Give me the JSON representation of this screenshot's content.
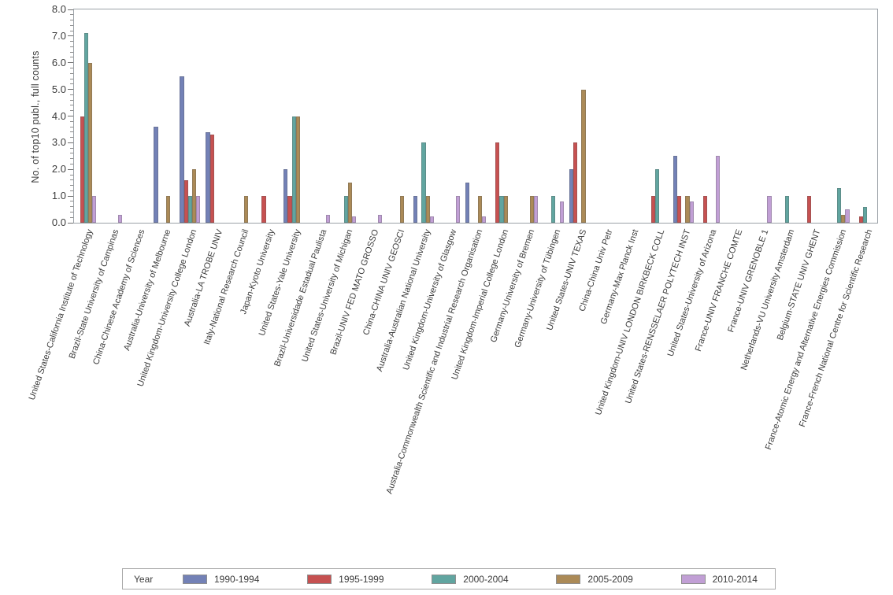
{
  "figure": {
    "background": "#ffffff",
    "frame_color": "#9ba1a7",
    "tick_color": "#6e6e6e",
    "text_color": "#3b3b3b",
    "y_axis": {
      "title": "No. of top10 publ., full counts",
      "tick_labels": [
        "0.0",
        "1.0",
        "2.0",
        "3.0",
        "4.0",
        "5.0",
        "6.0",
        "7.0",
        "8.0"
      ],
      "minor_ticks_per_major": 4
    },
    "x_axis": {
      "label_rotation_deg": -71
    },
    "legend": {
      "title": "Year",
      "position": "bottom"
    }
  },
  "chart_data": {
    "type": "bar",
    "title": "",
    "xlabel": "",
    "ylabel": "No. of top10 publ., full counts",
    "ylim": [
      0,
      8
    ],
    "y_major_step": 1.0,
    "grid": false,
    "legend_title": "Year",
    "legend_position": "bottom",
    "categories": [
      "United States-California Institute of Technology",
      "Brazil-State University of Campinas",
      "China-Chinese Academy of Sciences",
      "Australia-University of Melbourne",
      "United Kingdom-University College London",
      "Australia-LA TROBE UNIV",
      "Italy-National Research Council",
      "Japan-Kyoto University",
      "United States-Yale University",
      "Brazil-Universidade Estadual Paulista",
      "United States-University of Michigan",
      "Brazil-UNIV FED MATO GROSSO",
      "China-CHINA UNIV GEOSCI",
      "Australia-Australian National University",
      "United Kingdom-University of Glasgow",
      "Australia-Commonwealth Scientific and Industrial Research Organisation",
      "United Kingdom-Imperial College London",
      "Germany-University of Bremen",
      "Germany-University of Tübingen",
      "United States-UNIV TEXAS",
      "China-China Univ Petr",
      "Germany-Max Planck Inst",
      "United Kingdom-UNIV LONDON BIRKBECK COLL",
      "United States-RENSSELAER POLYTECH INST",
      "United States-University of Arizona",
      "France-UNIV FRANCHE COMTE",
      "France-UNIV GRENOBLE 1",
      "Netherlands-VU University Amsterdam",
      "Belgium-STATE UNIV GHENT",
      "France-Atomic Energy and Alternative Energies Commission",
      "France-French National Centre for Scientific Research"
    ],
    "series": [
      {
        "name": "1990-1994",
        "color": "#7381b6",
        "values": [
          null,
          null,
          null,
          3.6,
          5.5,
          3.4,
          null,
          null,
          2.0,
          null,
          null,
          null,
          null,
          1.0,
          null,
          1.5,
          null,
          null,
          null,
          2.0,
          null,
          null,
          null,
          2.5,
          null,
          null,
          null,
          null,
          null,
          null,
          null
        ]
      },
      {
        "name": "1995-1999",
        "color": "#c65151",
        "values": [
          4.0,
          null,
          null,
          null,
          1.6,
          3.3,
          null,
          1.0,
          1.0,
          null,
          null,
          null,
          null,
          null,
          null,
          null,
          3.0,
          null,
          null,
          3.0,
          null,
          null,
          1.0,
          1.0,
          1.0,
          null,
          null,
          null,
          1.0,
          null,
          0.25
        ]
      },
      {
        "name": "2000-2004",
        "color": "#61a5a0",
        "values": [
          7.1,
          null,
          null,
          null,
          1.0,
          null,
          null,
          null,
          4.0,
          null,
          1.0,
          null,
          null,
          3.0,
          null,
          null,
          1.0,
          null,
          1.0,
          null,
          null,
          null,
          2.0,
          null,
          null,
          null,
          null,
          1.0,
          null,
          1.3,
          0.6
        ]
      },
      {
        "name": "2005-2009",
        "color": "#ab8a57",
        "values": [
          6.0,
          null,
          null,
          1.0,
          2.0,
          null,
          1.0,
          null,
          4.0,
          null,
          1.5,
          null,
          1.0,
          1.0,
          null,
          1.0,
          1.0,
          1.0,
          null,
          5.0,
          null,
          null,
          null,
          1.0,
          null,
          null,
          null,
          null,
          null,
          0.3,
          null
        ]
      },
      {
        "name": "2010-2014",
        "color": "#c19fd5",
        "values": [
          1.0,
          0.3,
          null,
          null,
          1.0,
          null,
          null,
          null,
          null,
          0.3,
          0.25,
          0.3,
          null,
          0.25,
          1.0,
          0.25,
          null,
          1.0,
          0.8,
          null,
          null,
          null,
          null,
          0.8,
          2.5,
          null,
          1.0,
          null,
          null,
          0.5,
          null
        ]
      }
    ]
  }
}
